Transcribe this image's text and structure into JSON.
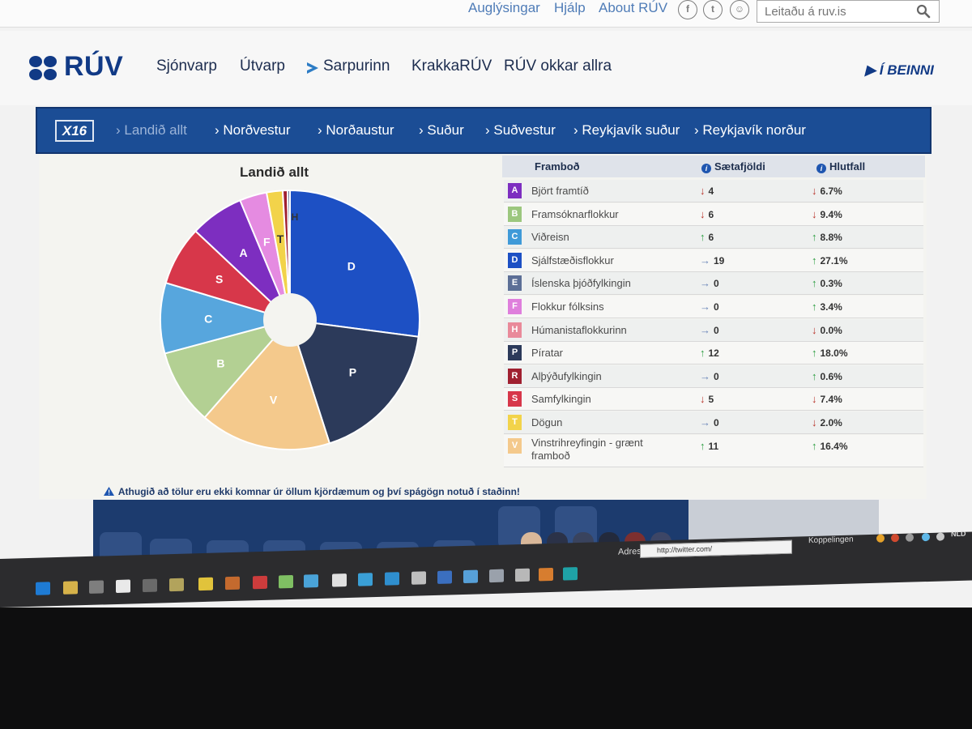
{
  "util_bar": {
    "links": [
      "Auglýsingar",
      "Hjálp",
      "About RÚV"
    ],
    "search_placeholder": "Leitaðu á ruv.is"
  },
  "header": {
    "logo_text": "RÚV",
    "nav": [
      "Sjónvarp",
      "Útvarp",
      "Sarpurinn",
      "KrakkaRÚV",
      "RÚV okkar allra"
    ],
    "live_label": "Í BEINNI"
  },
  "election_nav": {
    "badge": "X16",
    "tabs": [
      "› Landið allt",
      "› Norðvestur",
      "› Norðaustur",
      "› Suður",
      "› Suðvestur",
      "› Reykjavík suður",
      "› Reykjavík norður"
    ],
    "active_tab": 0
  },
  "chart_data": {
    "type": "pie",
    "title": "Landið allt",
    "donut_hole": true,
    "slices": [
      {
        "label": "D",
        "value": 27.1,
        "color": "#1d50c4"
      },
      {
        "label": "P",
        "value": 18.0,
        "color": "#2c3a5a"
      },
      {
        "label": "V",
        "value": 16.4,
        "color": "#f4c98c"
      },
      {
        "label": "B",
        "value": 9.4,
        "color": "#b3d093"
      },
      {
        "label": "C",
        "value": 8.8,
        "color": "#57a6dd"
      },
      {
        "label": "S",
        "value": 7.4,
        "color": "#d7374a"
      },
      {
        "label": "A",
        "value": 6.7,
        "color": "#7d2ec0"
      },
      {
        "label": "F",
        "value": 3.4,
        "color": "#e58be1"
      },
      {
        "label": "T",
        "value": 2.0,
        "color": "#f2d34a"
      },
      {
        "label": "R",
        "value": 0.6,
        "color": "#a02030"
      },
      {
        "label": "E",
        "value": 0.3,
        "color": "#5c6f96"
      },
      {
        "label": "H",
        "value": 0.0,
        "color": "#e98a9a"
      }
    ],
    "visible_labels": [
      "D",
      "P",
      "V",
      "B",
      "C",
      "S",
      "A",
      "F",
      "T",
      "H"
    ]
  },
  "table": {
    "headers": {
      "party": "Framboð",
      "seats": "Sætafjöldi",
      "share": "Hlutfall"
    },
    "rows": [
      {
        "letter": "A",
        "color": "#7d2ec0",
        "name": "Björt framtíð",
        "seats": "4",
        "seat_trend": "down",
        "share": "6.7%",
        "share_trend": "down"
      },
      {
        "letter": "B",
        "color": "#9cc77e",
        "name": "Framsóknarflokkur",
        "seats": "6",
        "seat_trend": "down",
        "share": "9.4%",
        "share_trend": "down"
      },
      {
        "letter": "C",
        "color": "#3f9ad8",
        "name": "Viðreisn",
        "seats": "6",
        "seat_trend": "up",
        "share": "8.8%",
        "share_trend": "up"
      },
      {
        "letter": "D",
        "color": "#1d50c4",
        "name": "Sjálfstæðisflokkur",
        "seats": "19",
        "seat_trend": "right",
        "share": "27.1%",
        "share_trend": "up"
      },
      {
        "letter": "E",
        "color": "#5c6f96",
        "name": "Íslenska þjóðfylkingin",
        "seats": "0",
        "seat_trend": "right",
        "share": "0.3%",
        "share_trend": "up"
      },
      {
        "letter": "F",
        "color": "#df7fdc",
        "name": "Flokkur fólksins",
        "seats": "0",
        "seat_trend": "right",
        "share": "3.4%",
        "share_trend": "up"
      },
      {
        "letter": "H",
        "color": "#e98a9a",
        "name": "Húmanistaflokkurinn",
        "seats": "0",
        "seat_trend": "right",
        "share": "0.0%",
        "share_trend": "down"
      },
      {
        "letter": "P",
        "color": "#2c3a5a",
        "name": "Píratar",
        "seats": "12",
        "seat_trend": "up",
        "share": "18.0%",
        "share_trend": "up"
      },
      {
        "letter": "R",
        "color": "#a02030",
        "name": "Alþýðufylkingin",
        "seats": "0",
        "seat_trend": "right",
        "share": "0.6%",
        "share_trend": "up"
      },
      {
        "letter": "S",
        "color": "#d7374a",
        "name": "Samfylkingin",
        "seats": "5",
        "seat_trend": "down",
        "share": "7.4%",
        "share_trend": "down"
      },
      {
        "letter": "T",
        "color": "#f2d34a",
        "name": "Dögun",
        "seats": "0",
        "seat_trend": "right",
        "share": "2.0%",
        "share_trend": "down"
      },
      {
        "letter": "V",
        "color": "#f4c98c",
        "name": "Vinstrihreyfingin - grænt framboð",
        "seats": "11",
        "seat_trend": "up",
        "share": "16.4%",
        "share_trend": "up"
      }
    ]
  },
  "notice": "Athugið að tölur eru ekki komnar úr öllum kjördæmum og því spágögn notuð í staðinn!",
  "taskbar": {
    "address_label": "Adres",
    "address_value": "http://twitter.com/",
    "links_label": "Koppelingen",
    "language": "NLD"
  }
}
